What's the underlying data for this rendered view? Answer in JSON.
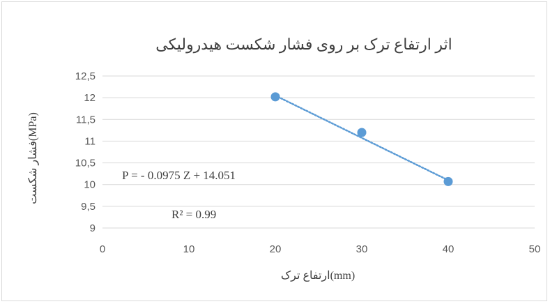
{
  "chart_data": {
    "type": "scatter",
    "title": "اثر ارتفاع ترک بر روی فشار شکست هیدرولیکی",
    "xlabel": "ارتفاع  ترک(mm)",
    "ylabel": "فشار شکست(MPa)",
    "xlim": [
      0,
      50
    ],
    "ylim": [
      9,
      12.5
    ],
    "x_ticks": [
      "0",
      "10",
      "20",
      "30",
      "40",
      "50"
    ],
    "y_ticks": [
      "9",
      "9,5",
      "10",
      "10,5",
      "11",
      "11,5",
      "12",
      "12,5"
    ],
    "grid": "horizontal",
    "series": [
      {
        "x": [
          20,
          30,
          40
        ],
        "y": [
          12.02,
          11.2,
          10.07
        ],
        "color": "#5b9bd5"
      }
    ],
    "trendline": {
      "type": "linear",
      "x": [
        20,
        40
      ],
      "y": [
        12.05,
        10.1
      ],
      "style": "dotted",
      "color": "#5b9bd5"
    },
    "annotations": [
      "P = - 0.0975  Z + 14.051",
      "R² = 0.99"
    ]
  }
}
